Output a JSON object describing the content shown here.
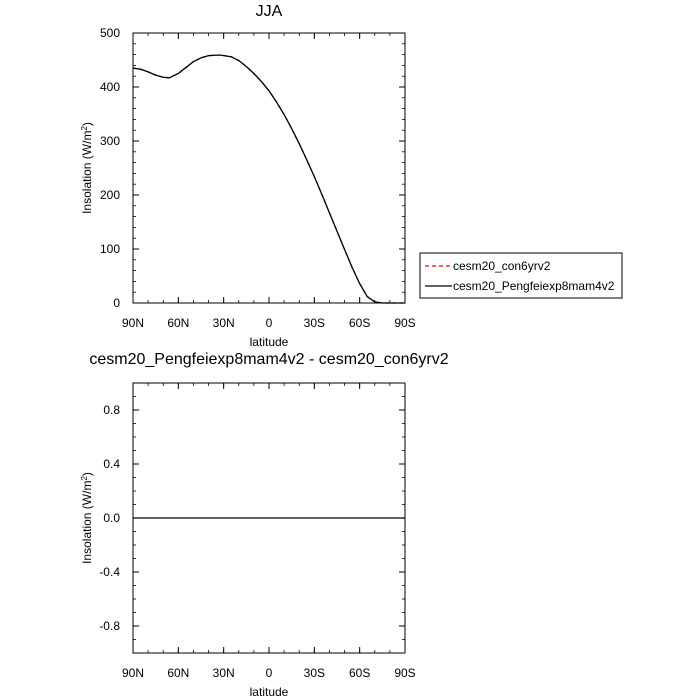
{
  "chart_data": [
    {
      "type": "line",
      "title": "JJA",
      "xlabel": "latitude",
      "ylabel": "Insolation (W/m",
      "ylabel_sup": "2",
      "ylabel_close": ")",
      "x_tick_labels": [
        "90N",
        "60N",
        "30N",
        "0",
        "30S",
        "60S",
        "90S"
      ],
      "x_tick_values": [
        90,
        60,
        30,
        0,
        -30,
        -60,
        -90
      ],
      "y_tick_labels": [
        "0",
        "100",
        "200",
        "300",
        "400",
        "500"
      ],
      "y_tick_values": [
        0,
        100,
        200,
        300,
        400,
        500
      ],
      "xlim": [
        90,
        -90
      ],
      "ylim": [
        0,
        500
      ],
      "grid": false,
      "legend_position": "right",
      "x": [
        90,
        85,
        80,
        75,
        70,
        66,
        60,
        55,
        50,
        45,
        40,
        35,
        32,
        25,
        20,
        15,
        10,
        5,
        0,
        -5,
        -10,
        -15,
        -20,
        -25,
        -30,
        -35,
        -40,
        -45,
        -50,
        -55,
        -60,
        -65,
        -70,
        -75,
        -80,
        -85,
        -90
      ],
      "series": [
        {
          "name": "cesm20_con6yrv2",
          "color": "#ff0000",
          "dash": "dashed",
          "values": [
            435,
            433,
            428,
            422,
            418,
            417,
            425,
            436,
            447,
            454,
            458,
            459,
            459,
            456,
            449,
            438,
            425,
            410,
            393,
            372,
            349,
            323,
            295,
            265,
            234,
            201,
            167,
            133,
            99,
            66,
            36,
            12,
            2,
            0,
            0,
            0,
            0
          ]
        },
        {
          "name": "cesm20_Pengfeiexp8mam4v2",
          "color": "#000000",
          "dash": "solid",
          "values": [
            435,
            433,
            428,
            422,
            418,
            417,
            425,
            436,
            447,
            454,
            458,
            459,
            459,
            456,
            449,
            438,
            425,
            410,
            393,
            372,
            349,
            323,
            295,
            265,
            234,
            201,
            167,
            133,
            99,
            66,
            36,
            12,
            2,
            0,
            0,
            0,
            0
          ]
        }
      ]
    },
    {
      "type": "line",
      "title": "cesm20_Pengfeiexp8mam4v2 - cesm20_con6yrv2",
      "xlabel": "latitude",
      "ylabel": "Insolation (W/m",
      "ylabel_sup": "2",
      "ylabel_close": ")",
      "x_tick_labels": [
        "90N",
        "60N",
        "30N",
        "0",
        "30S",
        "60S",
        "90S"
      ],
      "x_tick_values": [
        90,
        60,
        30,
        0,
        -30,
        -60,
        -90
      ],
      "y_tick_labels": [
        "-0.8",
        "-0.4",
        "0.0",
        "0.4",
        "0.8"
      ],
      "y_tick_values": [
        -0.8,
        -0.4,
        0.0,
        0.4,
        0.8
      ],
      "xlim": [
        90,
        -90
      ],
      "ylim": [
        -1,
        1
      ],
      "grid": false,
      "x": [
        90,
        -90
      ],
      "series": [
        {
          "color": "#000000",
          "dash": "solid",
          "values": [
            0,
            0
          ]
        }
      ]
    }
  ]
}
